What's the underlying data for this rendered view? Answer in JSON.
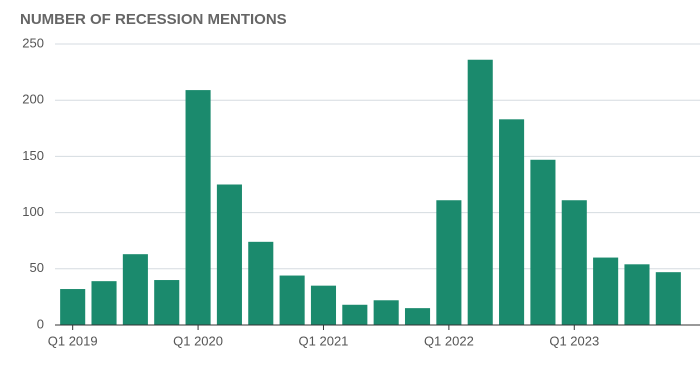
{
  "chart_data": {
    "type": "bar",
    "title": "NUMBER OF RECESSION MENTIONS",
    "categories": [
      "Q1 2019",
      null,
      null,
      null,
      "Q1 2020",
      null,
      null,
      null,
      "Q1 2021",
      null,
      null,
      null,
      "Q1 2022",
      null,
      null,
      null,
      "Q1 2023",
      null,
      null,
      null
    ],
    "values": [
      32,
      39,
      63,
      40,
      209,
      125,
      74,
      44,
      35,
      18,
      22,
      15,
      111,
      236,
      183,
      147,
      111,
      60,
      54,
      47
    ],
    "color": "#1b8a6d",
    "ylim": [
      0,
      250
    ],
    "yticks": [
      0,
      50,
      100,
      150,
      200,
      250
    ],
    "grid": true
  }
}
